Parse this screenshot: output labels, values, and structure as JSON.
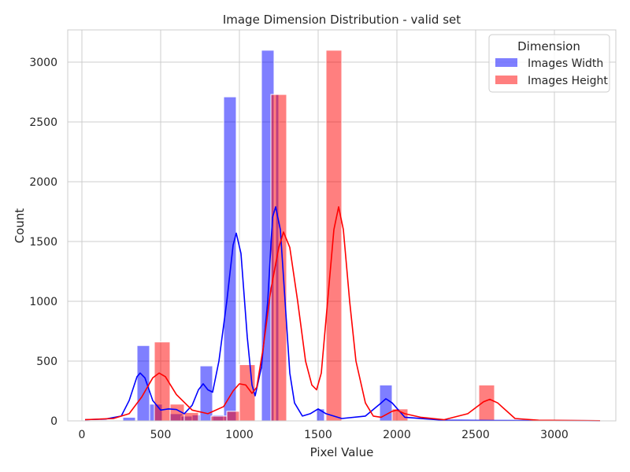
{
  "chart_data": {
    "type": "bar",
    "title": "Image Dimension Distribution - valid set",
    "xlabel": "Pixel Value",
    "ylabel": "Count",
    "xlim": [
      -90,
      3390
    ],
    "ylim": [
      0,
      3270
    ],
    "xticks": [
      0,
      500,
      1000,
      1500,
      2000,
      2500,
      3000
    ],
    "yticks": [
      0,
      500,
      1000,
      1500,
      2000,
      2500,
      3000
    ],
    "grid": true,
    "legend": {
      "title": "Dimension",
      "position": "top-right"
    },
    "series": [
      {
        "name": "Images Width",
        "color": "#0000ff",
        "bars": [
          {
            "x0": 260,
            "x1": 340,
            "y": 30
          },
          {
            "x0": 350,
            "x1": 430,
            "y": 630
          },
          {
            "x0": 430,
            "x1": 510,
            "y": 140
          },
          {
            "x0": 560,
            "x1": 640,
            "y": 60
          },
          {
            "x0": 630,
            "x1": 700,
            "y": 40
          },
          {
            "x0": 700,
            "x1": 750,
            "y": 50
          },
          {
            "x0": 750,
            "x1": 830,
            "y": 460
          },
          {
            "x0": 830,
            "x1": 900,
            "y": 50
          },
          {
            "x0": 900,
            "x1": 980,
            "y": 2710
          },
          {
            "x0": 1140,
            "x1": 1220,
            "y": 3100
          },
          {
            "x0": 1230,
            "x1": 1250,
            "y": 2730
          },
          {
            "x0": 1490,
            "x1": 1540,
            "y": 100
          },
          {
            "x0": 1890,
            "x1": 1970,
            "y": 300
          }
        ],
        "kde": [
          [
            20,
            10
          ],
          [
            150,
            15
          ],
          [
            250,
            40
          ],
          [
            300,
            170
          ],
          [
            350,
            370
          ],
          [
            370,
            400
          ],
          [
            400,
            360
          ],
          [
            450,
            170
          ],
          [
            500,
            90
          ],
          [
            550,
            100
          ],
          [
            600,
            95
          ],
          [
            650,
            60
          ],
          [
            700,
            130
          ],
          [
            740,
            260
          ],
          [
            770,
            310
          ],
          [
            800,
            260
          ],
          [
            830,
            240
          ],
          [
            870,
            500
          ],
          [
            920,
            1000
          ],
          [
            960,
            1470
          ],
          [
            980,
            1570
          ],
          [
            1010,
            1400
          ],
          [
            1050,
            700
          ],
          [
            1080,
            300
          ],
          [
            1100,
            210
          ],
          [
            1140,
            450
          ],
          [
            1180,
            1000
          ],
          [
            1210,
            1700
          ],
          [
            1230,
            1790
          ],
          [
            1260,
            1600
          ],
          [
            1290,
            1000
          ],
          [
            1320,
            400
          ],
          [
            1350,
            150
          ],
          [
            1400,
            40
          ],
          [
            1450,
            60
          ],
          [
            1500,
            100
          ],
          [
            1550,
            60
          ],
          [
            1650,
            20
          ],
          [
            1800,
            40
          ],
          [
            1900,
            150
          ],
          [
            1930,
            185
          ],
          [
            1970,
            150
          ],
          [
            2050,
            30
          ],
          [
            2300,
            5
          ],
          [
            2600,
            3
          ],
          [
            3290,
            1
          ]
        ]
      },
      {
        "name": "Images Height",
        "color": "#ff0000",
        "bars": [
          {
            "x0": 460,
            "x1": 560,
            "y": 660
          },
          {
            "x0": 560,
            "x1": 650,
            "y": 140
          },
          {
            "x0": 650,
            "x1": 740,
            "y": 70
          },
          {
            "x0": 820,
            "x1": 920,
            "y": 40
          },
          {
            "x0": 920,
            "x1": 1000,
            "y": 80
          },
          {
            "x0": 1000,
            "x1": 1100,
            "y": 470
          },
          {
            "x0": 1200,
            "x1": 1300,
            "y": 2730
          },
          {
            "x0": 1550,
            "x1": 1650,
            "y": 3100
          },
          {
            "x0": 1970,
            "x1": 2070,
            "y": 100
          },
          {
            "x0": 2520,
            "x1": 2620,
            "y": 300
          }
        ],
        "kde": [
          [
            20,
            10
          ],
          [
            200,
            20
          ],
          [
            300,
            60
          ],
          [
            380,
            200
          ],
          [
            450,
            360
          ],
          [
            490,
            400
          ],
          [
            530,
            370
          ],
          [
            600,
            220
          ],
          [
            700,
            90
          ],
          [
            800,
            60
          ],
          [
            900,
            120
          ],
          [
            960,
            250
          ],
          [
            1000,
            310
          ],
          [
            1040,
            300
          ],
          [
            1080,
            230
          ],
          [
            1110,
            280
          ],
          [
            1150,
            600
          ],
          [
            1200,
            1100
          ],
          [
            1250,
            1450
          ],
          [
            1280,
            1580
          ],
          [
            1320,
            1450
          ],
          [
            1370,
            1000
          ],
          [
            1420,
            500
          ],
          [
            1460,
            300
          ],
          [
            1490,
            260
          ],
          [
            1520,
            400
          ],
          [
            1560,
            1000
          ],
          [
            1600,
            1600
          ],
          [
            1630,
            1790
          ],
          [
            1660,
            1600
          ],
          [
            1700,
            1000
          ],
          [
            1740,
            500
          ],
          [
            1800,
            150
          ],
          [
            1850,
            40
          ],
          [
            1900,
            30
          ],
          [
            1970,
            80
          ],
          [
            2000,
            90
          ],
          [
            2050,
            60
          ],
          [
            2150,
            30
          ],
          [
            2300,
            10
          ],
          [
            2450,
            60
          ],
          [
            2550,
            160
          ],
          [
            2590,
            180
          ],
          [
            2640,
            150
          ],
          [
            2750,
            20
          ],
          [
            2900,
            5
          ],
          [
            3290,
            1
          ]
        ]
      }
    ]
  }
}
